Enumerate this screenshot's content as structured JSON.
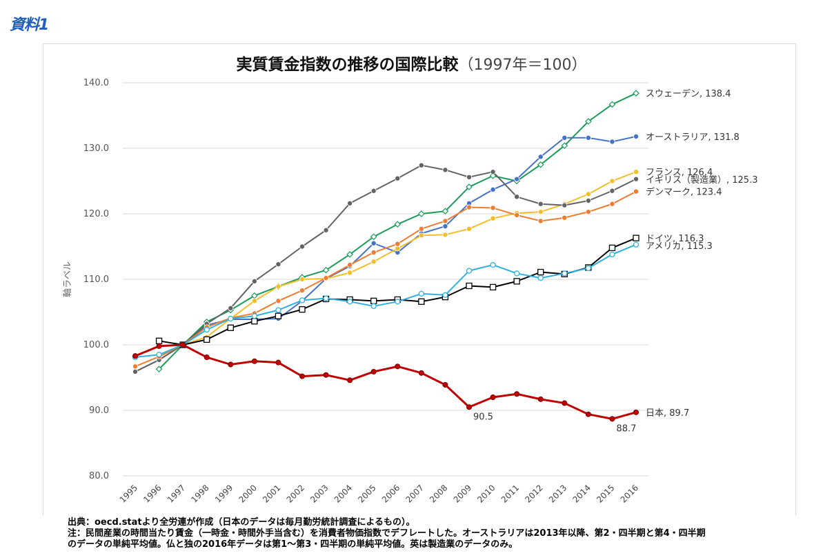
{
  "badge": "資料1",
  "title": "実質賃金指数の推移の国際比較",
  "title_sub": "（1997年＝100）",
  "notes": {
    "source": "出典：oecd.statより全労連が作成（日本のデータは毎月勤労統計調査によるもの）。",
    "note_line1": "注：民間産業の時間当たり賃金（一時金・時間外手当含む）を消費者物価指数でデフレートした。オーストラリアは2013年以降、第2・四半期と第4・四半期",
    "note_line2": "のデータの単純平均値。仏と独の2016年データは第1～第3・四半期の単純平均値。英は製造業のデータのみ。"
  },
  "chart_data": {
    "type": "line",
    "title": "実質賃金指数の推移の国際比較（1997年＝100）",
    "xlabel": "",
    "ylabel": "軸ラベル",
    "ylim": [
      80,
      140
    ],
    "yticks": [
      "140.0",
      "130.0",
      "120.0",
      "110.0",
      "100.0",
      "90.0",
      "80.0"
    ],
    "categories": [
      "1995",
      "1996",
      "1997",
      "1998",
      "1999",
      "2000",
      "2001",
      "2002",
      "2003",
      "2004",
      "2005",
      "2006",
      "2007",
      "2008",
      "2009",
      "2010",
      "2011",
      "2012",
      "2013",
      "2014",
      "2015",
      "2016"
    ],
    "series": [
      {
        "name": "スウェーデン",
        "label": "スウェーデン, 138.4",
        "color": "#1a9b57",
        "marker": "diamond",
        "values": [
          null,
          96.3,
          100.0,
          103.5,
          105.3,
          107.5,
          108.9,
          110.3,
          111.4,
          113.8,
          116.5,
          118.4,
          120.0,
          120.4,
          124.1,
          125.8,
          125.0,
          127.5,
          130.4,
          134.1,
          136.7,
          138.4
        ]
      },
      {
        "name": "オーストラリア",
        "label": "オーストラリア, 131.8",
        "color": "#4472c4",
        "marker": "circle",
        "values": [
          95.9,
          97.7,
          100.0,
          103.0,
          103.9,
          103.9,
          104.0,
          106.7,
          110.1,
          112.0,
          115.5,
          114.1,
          117.0,
          118.1,
          121.6,
          123.7,
          125.3,
          128.7,
          131.6,
          131.6,
          131.0,
          131.8
        ]
      },
      {
        "name": "フランス",
        "label": "フランス, 126.4",
        "color": "#f4be2a",
        "marker": "circle",
        "values": [
          null,
          98.2,
          100.0,
          101.2,
          104.0,
          106.7,
          108.9,
          110.0,
          110.1,
          111.0,
          112.7,
          114.7,
          116.7,
          116.8,
          117.7,
          119.3,
          120.1,
          120.3,
          121.5,
          123.0,
          125.0,
          126.4
        ]
      },
      {
        "name": "イギリス（製造業）",
        "label": "イギリス（製造業）, 125.3",
        "color": "#636363",
        "marker": "circle",
        "values": [
          95.9,
          97.7,
          100.0,
          103.2,
          105.6,
          109.7,
          112.3,
          115.0,
          117.5,
          121.6,
          123.5,
          125.4,
          127.4,
          126.7,
          125.6,
          126.4,
          122.6,
          121.5,
          121.3,
          122.0,
          123.5,
          125.3
        ]
      },
      {
        "name": "デンマーク",
        "label": "デンマーク, 123.4",
        "color": "#ed7d31",
        "marker": "circle",
        "values": [
          96.7,
          98.2,
          100.0,
          102.7,
          104.1,
          104.8,
          106.7,
          108.3,
          110.2,
          112.2,
          114.1,
          115.4,
          117.7,
          118.9,
          121.0,
          120.9,
          119.8,
          118.9,
          119.4,
          120.3,
          121.5,
          123.4
        ]
      },
      {
        "name": "ドイツ",
        "label": "ドイツ, 116.3",
        "color": "#000000",
        "marker": "square",
        "values": [
          null,
          100.6,
          100.0,
          100.8,
          102.6,
          103.6,
          104.4,
          105.4,
          107.0,
          106.9,
          106.7,
          106.9,
          106.6,
          107.3,
          109.0,
          108.8,
          109.7,
          111.1,
          110.8,
          111.8,
          114.8,
          116.3
        ]
      },
      {
        "name": "アメリカ",
        "label": "アメリカ, 115.3",
        "color": "#2eb1dc",
        "marker": "circle-open",
        "values": [
          98.1,
          98.5,
          100.0,
          102.3,
          104.0,
          104.4,
          105.3,
          106.8,
          107.1,
          106.6,
          105.9,
          106.6,
          107.8,
          107.6,
          111.3,
          112.2,
          110.9,
          110.2,
          110.9,
          111.7,
          113.8,
          115.3
        ]
      },
      {
        "name": "日本",
        "label": "日本, 89.7",
        "color": "#c00000",
        "marker": "circle",
        "width": 3,
        "values": [
          98.3,
          99.8,
          100.0,
          98.1,
          97.0,
          97.5,
          97.3,
          95.2,
          95.4,
          94.6,
          95.9,
          96.7,
          95.7,
          93.9,
          90.5,
          92.0,
          92.5,
          91.7,
          91.1,
          89.4,
          88.7,
          89.7
        ]
      }
    ],
    "annotations": [
      {
        "text": "90.5",
        "year": "2009",
        "value": 90.5
      },
      {
        "text": "88.7",
        "year": "2015",
        "value": 88.7
      }
    ]
  }
}
